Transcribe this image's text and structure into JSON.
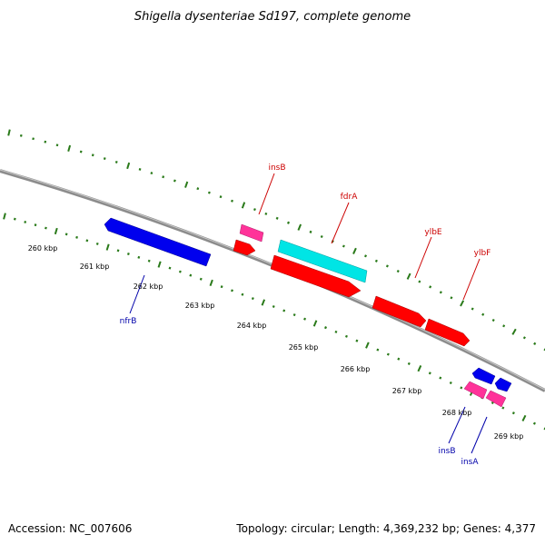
{
  "title": "Shigella dysenteriae Sd197, complete genome",
  "footer": {
    "accession": "Accession: NC_007606",
    "topology": "Topology: circular; Length: 4,369,232 bp; Genes: 4,377"
  },
  "colors": {
    "backbone": "#8c8c8c",
    "ticks": "#2a7a1a",
    "forward_label": "#cc0000",
    "reverse_label": "#0000aa",
    "forward_gene": "#ff0000",
    "cds_alt": "#00e5e5",
    "mobile_element": "#ff3399",
    "reverse_gene": "#0000ee"
  },
  "kbp_labels": [
    "260 kbp",
    "261 kbp",
    "262 kbp",
    "263 kbp",
    "264 kbp",
    "265 kbp",
    "266 kbp",
    "267 kbp",
    "268 kbp",
    "269 kbp"
  ],
  "genes": [
    {
      "name": "insB",
      "strand": "forward",
      "color": "mobile_element"
    },
    {
      "name": "fdrA",
      "strand": "forward",
      "color": "cds_alt"
    },
    {
      "name": "ylbE",
      "strand": "forward",
      "color": "forward_gene"
    },
    {
      "name": "ylbF",
      "strand": "forward",
      "color": "forward_gene"
    },
    {
      "name": "nfrB",
      "strand": "reverse",
      "color": "reverse_gene"
    },
    {
      "name": "insB",
      "strand": "reverse",
      "color": "mobile_element"
    },
    {
      "name": "insA",
      "strand": "reverse",
      "color": "mobile_element"
    }
  ]
}
